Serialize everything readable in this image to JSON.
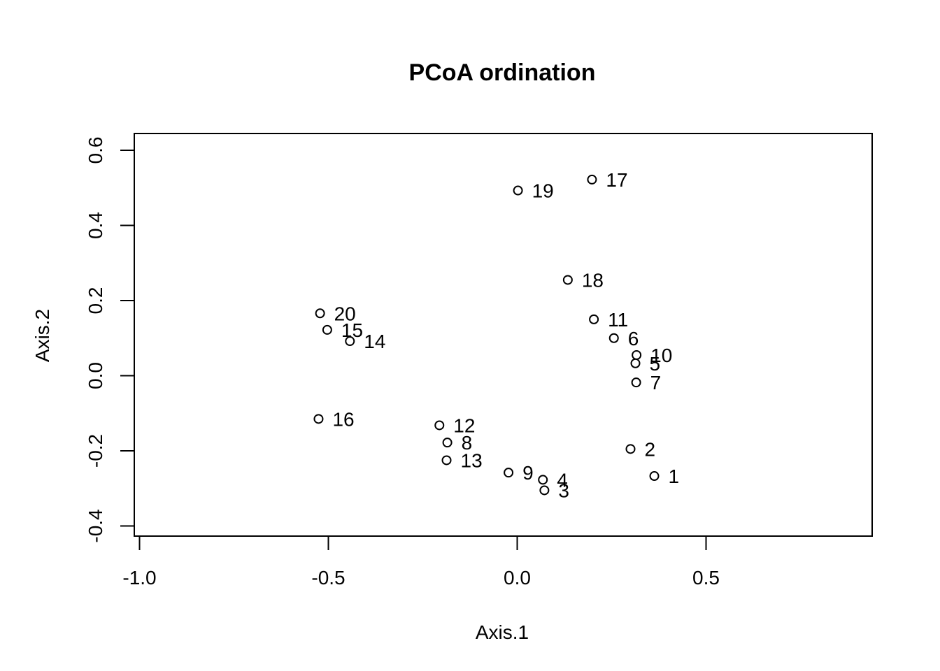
{
  "chart_data": {
    "type": "scatter",
    "title": "PCoA ordination",
    "xlabel": "Axis.1",
    "ylabel": "Axis.2",
    "xlim": [
      -1.0,
      0.95
    ],
    "ylim": [
      -0.42,
      0.65
    ],
    "xticks": [
      -1.0,
      -0.5,
      0.0,
      0.5
    ],
    "xtick_labels": [
      "-1.0",
      "-0.5",
      "0.0",
      "0.5"
    ],
    "yticks": [
      -0.4,
      -0.2,
      0.0,
      0.2,
      0.4,
      0.6
    ],
    "ytick_labels": [
      "-0.4",
      "-0.2",
      "0.0",
      "0.2",
      "0.4",
      "0.6"
    ],
    "grid": false,
    "marker": "open-circle",
    "points": [
      {
        "label": "1",
        "x": 0.363,
        "y": -0.267
      },
      {
        "label": "2",
        "x": 0.3,
        "y": -0.195
      },
      {
        "label": "3",
        "x": 0.072,
        "y": -0.305
      },
      {
        "label": "4",
        "x": 0.068,
        "y": -0.277
      },
      {
        "label": "5",
        "x": 0.313,
        "y": 0.033
      },
      {
        "label": "6",
        "x": 0.256,
        "y": 0.1
      },
      {
        "label": "7",
        "x": 0.315,
        "y": -0.018
      },
      {
        "label": "8",
        "x": -0.185,
        "y": -0.178
      },
      {
        "label": "9",
        "x": -0.023,
        "y": -0.258
      },
      {
        "label": "10",
        "x": 0.316,
        "y": 0.055
      },
      {
        "label": "11",
        "x": 0.203,
        "y": 0.15
      },
      {
        "label": "12",
        "x": -0.206,
        "y": -0.132
      },
      {
        "label": "13",
        "x": -0.187,
        "y": -0.225
      },
      {
        "label": "14",
        "x": -0.443,
        "y": 0.092
      },
      {
        "label": "15",
        "x": -0.503,
        "y": 0.122
      },
      {
        "label": "16",
        "x": -0.526,
        "y": -0.115
      },
      {
        "label": "17",
        "x": 0.198,
        "y": 0.522
      },
      {
        "label": "18",
        "x": 0.134,
        "y": 0.255
      },
      {
        "label": "19",
        "x": 0.002,
        "y": 0.493
      },
      {
        "label": "20",
        "x": -0.522,
        "y": 0.166
      }
    ]
  }
}
